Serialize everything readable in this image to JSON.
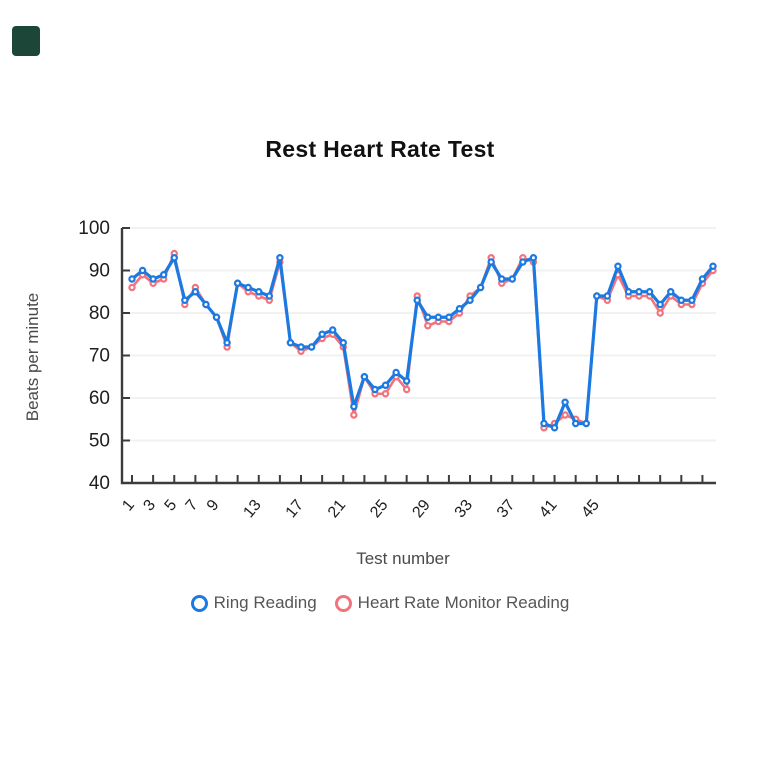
{
  "app": {
    "corner_badge_color": "#1c4637"
  },
  "chart_data": {
    "type": "line",
    "title": "Rest Heart Rate Test",
    "xlabel": "Test number",
    "ylabel": "Beats per minute",
    "ylim": [
      40,
      100
    ],
    "y_ticks": [
      40,
      50,
      60,
      70,
      80,
      90,
      100
    ],
    "x_tick_positions": [
      1,
      3,
      5,
      7,
      9,
      11,
      13,
      15,
      17,
      19,
      21,
      23,
      25,
      27,
      29,
      31,
      33,
      35,
      37,
      39,
      41,
      43,
      45,
      47,
      49,
      51,
      53,
      55
    ],
    "x_tick_labels_shown": [
      1,
      3,
      5,
      7,
      9,
      13,
      17,
      21,
      25,
      29,
      33,
      37,
      41,
      45
    ],
    "x": [
      1,
      2,
      3,
      4,
      5,
      6,
      7,
      8,
      9,
      10,
      11,
      12,
      13,
      14,
      15,
      16,
      17,
      18,
      19,
      20,
      21,
      22,
      23,
      24,
      25,
      26,
      27,
      28,
      29,
      30,
      31,
      32,
      33,
      34,
      35,
      36,
      37,
      38,
      39,
      40,
      41,
      42,
      43,
      44,
      45,
      46,
      47,
      48,
      49,
      50,
      51,
      52,
      53,
      54,
      55,
      56
    ],
    "series": [
      {
        "name": "Ring Reading",
        "color": "#1b7ae2",
        "values": [
          88,
          90,
          88,
          89,
          93,
          83,
          85,
          82,
          79,
          73,
          87,
          86,
          85,
          84,
          93,
          73,
          72,
          72,
          75,
          76,
          73,
          58,
          65,
          62,
          63,
          66,
          64,
          83,
          79,
          79,
          79,
          81,
          83,
          86,
          92,
          88,
          88,
          92,
          93,
          54,
          53,
          59,
          54,
          54,
          84,
          84,
          91,
          85,
          85,
          85,
          82,
          85,
          83,
          83,
          88,
          91
        ]
      },
      {
        "name": "Heart Rate Monitor Reading",
        "color": "#f2737c",
        "values": [
          86,
          89,
          87,
          88,
          94,
          82,
          86,
          82,
          79,
          72,
          87,
          85,
          84,
          83,
          92,
          73,
          71,
          72,
          74,
          75,
          72,
          56,
          65,
          61,
          61,
          65,
          62,
          84,
          77,
          78,
          78,
          80,
          84,
          86,
          93,
          87,
          88,
          93,
          92,
          53,
          54,
          56,
          55,
          54,
          84,
          83,
          89,
          84,
          84,
          84,
          80,
          84,
          82,
          82,
          87,
          90
        ]
      }
    ],
    "grid": "horizontal-faint",
    "legend_position": "bottom",
    "axis_color": "#3c3c3c",
    "grid_color": "#f1f1f1",
    "tick_label_color": "#1f1f1f",
    "axis_title_color": "#4a4a4a"
  }
}
